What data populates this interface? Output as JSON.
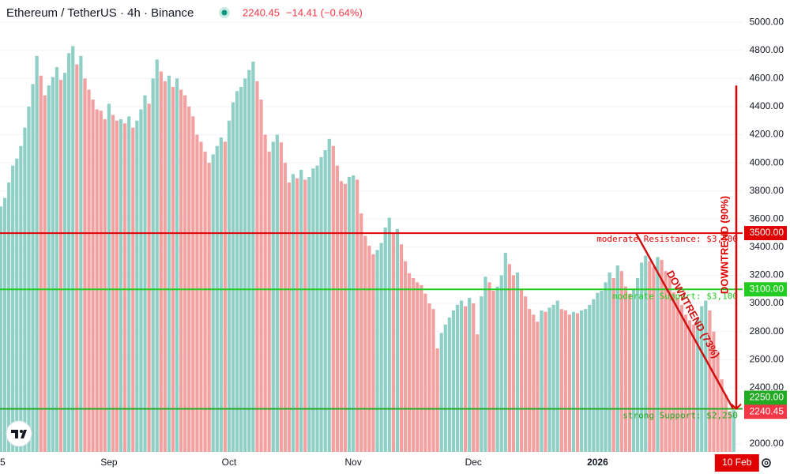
{
  "chart_data": {
    "type": "bar",
    "title": "Ethereum / TetherUS · 4h · Binance",
    "last_price": 2240.45,
    "change_label": "−14.41 (−0.64%)",
    "up_color": "#8fcfc5",
    "down_color": "#f3a0a0",
    "grid": true,
    "ylim": [
      1944,
      5158
    ],
    "yticks": [
      {
        "value": 2000,
        "label": "2000.00"
      },
      {
        "value": 2400,
        "label": "2400.00"
      },
      {
        "value": 2600,
        "label": "2600.00"
      },
      {
        "value": 2800,
        "label": "2800.00"
      },
      {
        "value": 3000,
        "label": "3000.00"
      },
      {
        "value": 3200,
        "label": "3200.00"
      },
      {
        "value": 3400,
        "label": "3400.00"
      },
      {
        "value": 3600,
        "label": "3600.00"
      },
      {
        "value": 3800,
        "label": "3800.00"
      },
      {
        "value": 4000,
        "label": "4000.00"
      },
      {
        "value": 4200,
        "label": "4200.00"
      },
      {
        "value": 4400,
        "label": "4400.00"
      },
      {
        "value": 4600,
        "label": "4600.00"
      },
      {
        "value": 4800,
        "label": "4800.00"
      },
      {
        "value": 5000,
        "label": "5000.00"
      }
    ],
    "categories": [
      "5",
      null,
      null,
      null,
      null,
      null,
      null,
      null,
      null,
      null,
      null,
      null,
      null,
      null,
      null,
      null,
      null,
      null,
      null,
      null,
      null,
      null,
      null,
      null,
      null,
      null,
      null,
      "Sep",
      null,
      null,
      null,
      null,
      null,
      null,
      null,
      null,
      null,
      null,
      null,
      null,
      null,
      null,
      null,
      null,
      null,
      null,
      null,
      null,
      null,
      null,
      null,
      null,
      null,
      null,
      null,
      null,
      null,
      "Oct",
      null,
      null,
      null,
      null,
      null,
      null,
      null,
      null,
      null,
      null,
      null,
      null,
      null,
      null,
      null,
      null,
      null,
      null,
      null,
      null,
      null,
      null,
      null,
      null,
      null,
      null,
      null,
      null,
      null,
      null,
      "Nov",
      null,
      null,
      null,
      null,
      null,
      null,
      null,
      null,
      null,
      null,
      null,
      null,
      null,
      null,
      null,
      null,
      null,
      null,
      null,
      null,
      null,
      null,
      null,
      null,
      null,
      null,
      null,
      null,
      null,
      "Dec",
      null,
      null,
      null,
      null,
      null,
      null,
      null,
      null,
      null,
      null,
      null,
      null,
      null,
      null,
      null,
      null,
      null,
      null,
      null,
      null,
      null,
      null,
      null,
      null,
      null,
      null,
      null,
      null,
      null,
      null,
      "2026",
      null,
      null,
      null,
      null,
      null,
      null,
      null,
      null,
      null,
      null,
      null,
      null,
      null,
      null,
      null,
      null,
      null,
      null,
      null,
      null,
      null,
      null,
      null,
      null,
      null,
      null,
      null,
      null,
      null,
      null,
      null,
      null,
      null,
      "10 Feb"
    ],
    "values": [
      3690,
      3750,
      3860,
      3980,
      4030,
      4120,
      4250,
      4400,
      4560,
      4760,
      4620,
      4480,
      4550,
      4610,
      4680,
      4590,
      4640,
      4780,
      4830,
      4700,
      4760,
      4600,
      4520,
      4450,
      4380,
      4370,
      4310,
      4420,
      4340,
      4300,
      4310,
      4280,
      4330,
      4250,
      4300,
      4380,
      4480,
      4420,
      4600,
      4735,
      4650,
      4580,
      4620,
      4540,
      4600,
      4520,
      4480,
      4400,
      4330,
      4200,
      4150,
      4080,
      4000,
      4060,
      4120,
      4180,
      4150,
      4300,
      4430,
      4510,
      4540,
      4600,
      4660,
      4720,
      4580,
      4450,
      4200,
      4080,
      4150,
      4200,
      4145,
      4000,
      3860,
      3920,
      3890,
      3950,
      3880,
      3900,
      3960,
      3980,
      4040,
      4090,
      4170,
      4120,
      3980,
      3870,
      3850,
      3900,
      3910,
      3880,
      3640,
      3480,
      3410,
      3350,
      3380,
      3430,
      3540,
      3610,
      3500,
      3530,
      3420,
      3300,
      3215,
      3180,
      3150,
      3130,
      3070,
      3000,
      2960,
      2680,
      2790,
      2850,
      2900,
      2950,
      2990,
      3020,
      2980,
      3040,
      3000,
      2780,
      3050,
      3190,
      3150,
      3090,
      3120,
      3200,
      3360,
      3280,
      3200,
      3220,
      3100,
      3050,
      2960,
      2920,
      2870,
      2950,
      2940,
      2970,
      2990,
      3020,
      2960,
      2950,
      2920,
      2940,
      2930,
      2950,
      2960,
      2990,
      3030,
      3075,
      3090,
      3150,
      3220,
      3180,
      3270,
      3230,
      3120,
      3070,
      3100,
      3180,
      3290,
      3340,
      3300,
      3260,
      3330,
      3310,
      3230,
      3190,
      3080,
      3040,
      2990,
      2920,
      2880,
      2850,
      2900,
      2980,
      3020,
      2950,
      2800,
      2660,
      2460,
      2350,
      2230,
      2240.45
    ],
    "levels": [
      {
        "label": "moderate Resistance: $3,500",
        "value": 3500,
        "price_label": "3500.00",
        "color": "#e00000"
      },
      {
        "label": "moderate Support: $3,100",
        "value": 3100,
        "price_label": "3100.00",
        "color": "#22cc22"
      },
      {
        "label": "strong Support: $2,250",
        "value": 2250,
        "price_label": "2250.00",
        "color": "#22aa22"
      }
    ],
    "trendlines": [
      {
        "label": "DOWNTREND (73%)",
        "start": 3500,
        "end": 2250,
        "color": "#d01010"
      },
      {
        "label": "DOWNTREND (90%)",
        "start": 4550,
        "end": 2250,
        "color": "#e00000"
      }
    ]
  }
}
